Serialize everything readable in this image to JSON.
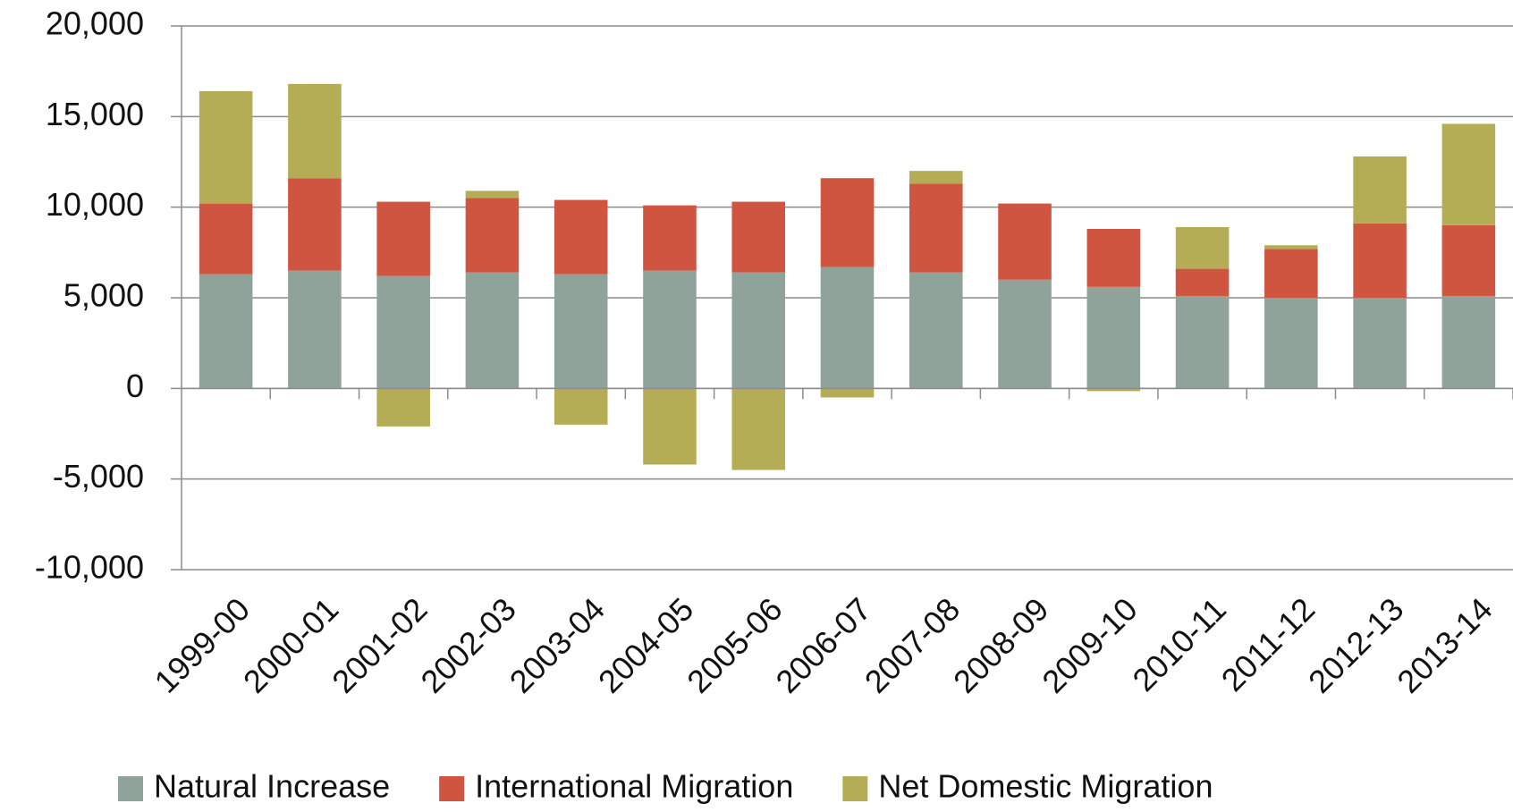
{
  "chart_data": {
    "type": "stacked_bar",
    "categories": [
      "1999-00",
      "2000-01",
      "2001-02",
      "2002-03",
      "2003-04",
      "2004-05",
      "2005-06",
      "2006-07",
      "2007-08",
      "2008-09",
      "2009-10",
      "2010-11",
      "2011-12",
      "2012-13",
      "2013-14"
    ],
    "series": [
      {
        "name": "Natural Increase",
        "color": "#8fa39a",
        "values": [
          6300,
          6500,
          6200,
          6400,
          6300,
          6500,
          6400,
          6700,
          6400,
          6000,
          5600,
          5100,
          5000,
          5000,
          5100
        ]
      },
      {
        "name": "International Migration",
        "color": "#d05540",
        "values": [
          3900,
          5100,
          4100,
          4100,
          4100,
          3600,
          3900,
          4900,
          4900,
          4200,
          3200,
          1500,
          2700,
          4100,
          3900
        ]
      },
      {
        "name": "Net Domestic Migration",
        "color": "#b5ad55",
        "values": [
          6200,
          5200,
          -2100,
          400,
          -2000,
          -4200,
          -4500,
          -500,
          700,
          0,
          -150,
          2300,
          200,
          3700,
          5600
        ]
      }
    ],
    "ylim": [
      -10000,
      20000
    ],
    "yticks": [
      {
        "value": -10000,
        "label": "-10,000"
      },
      {
        "value": -5000,
        "label": "-5,000"
      },
      0,
      {
        "value": 5000,
        "label": "5,000"
      },
      {
        "value": 10000,
        "label": "10,000"
      },
      {
        "value": 15000,
        "label": "15,000"
      },
      {
        "value": 20000,
        "label": "20,000"
      }
    ],
    "grid": true,
    "legend": "bottom"
  }
}
